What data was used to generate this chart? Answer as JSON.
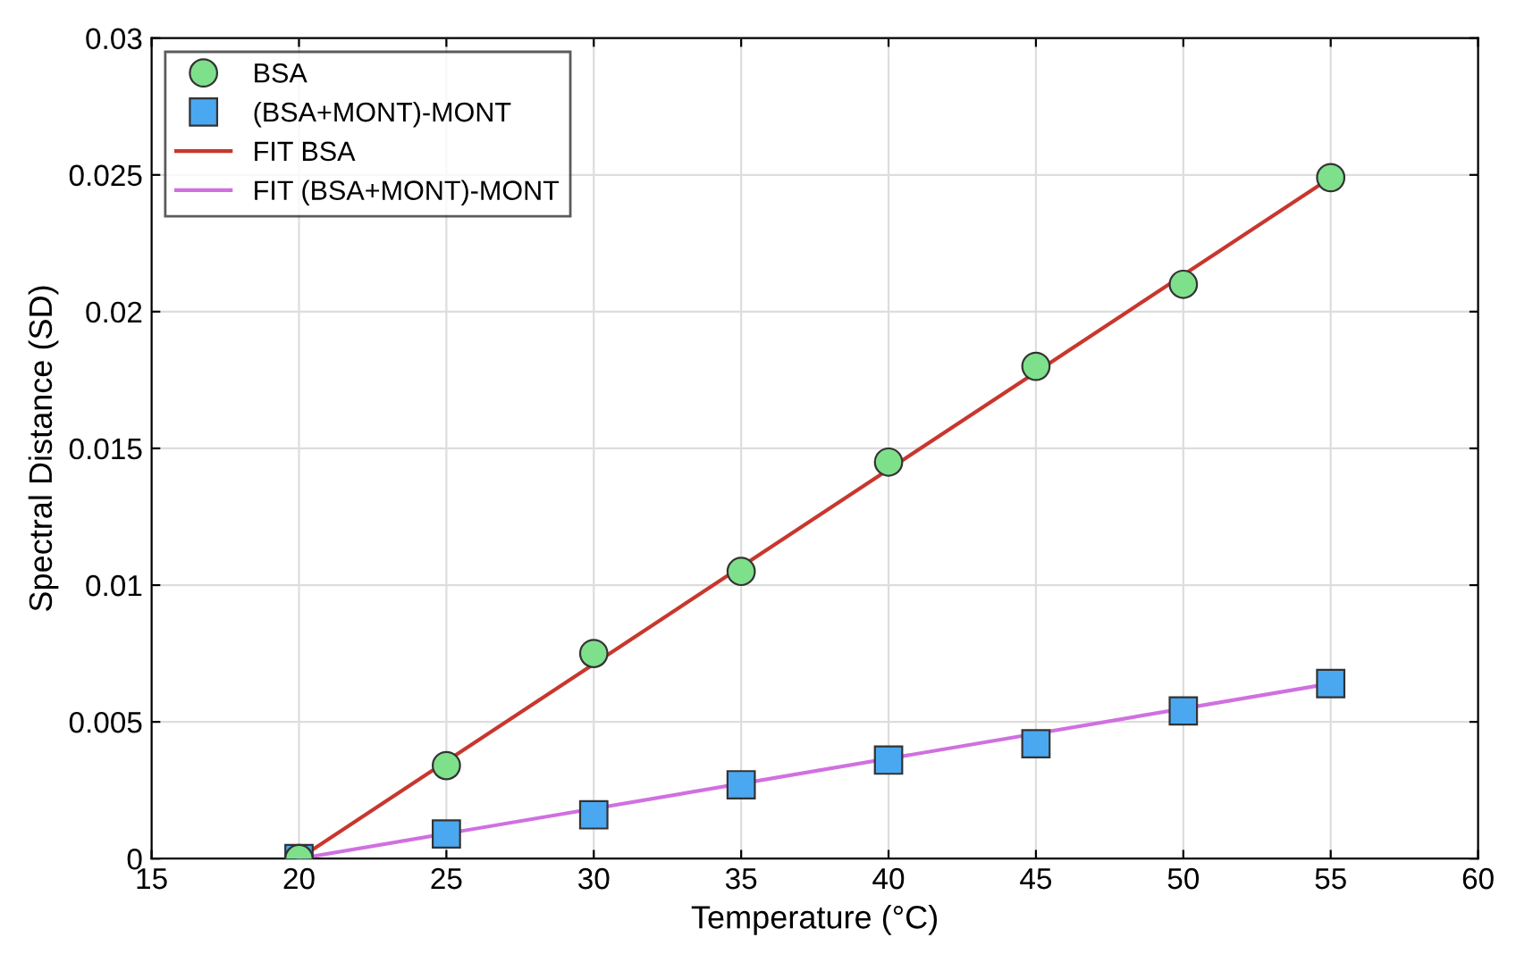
{
  "chart_data": {
    "type": "scatter",
    "xlabel": "Temperature (°C)",
    "ylabel": "Spectral Distance (SD)",
    "xlim": [
      15,
      60
    ],
    "xticks": [
      15,
      20,
      25,
      30,
      35,
      40,
      45,
      50,
      55,
      60
    ],
    "ylim": [
      0,
      0.03
    ],
    "yticks": [
      0,
      0.005,
      0.01,
      0.015,
      0.02,
      0.025,
      0.03
    ],
    "grid": true,
    "legend": "top left",
    "series": [
      {
        "name": "BSA",
        "marker": "circle",
        "color": "#7ee08a",
        "x": [
          20,
          25,
          30,
          35,
          40,
          45,
          50,
          55
        ],
        "values": [
          0,
          0.0034,
          0.0075,
          0.0105,
          0.0145,
          0.018,
          0.021,
          0.0249
        ]
      },
      {
        "name": "(BSA+MONT)-MONT",
        "marker": "square",
        "color": "#4aa8f0",
        "x": [
          20,
          25,
          30,
          35,
          40,
          45,
          50,
          55
        ],
        "values": [
          0,
          0.0009,
          0.0016,
          0.0027,
          0.0036,
          0.0042,
          0.0054,
          0.0064
        ]
      },
      {
        "name": "FIT BSA",
        "type": "line",
        "marker": "none",
        "line_style": "solid",
        "color": "#c8372d",
        "x": [
          20,
          55
        ],
        "values": [
          0,
          0.0249
        ]
      },
      {
        "name": "FIT (BSA+MONT)-MONT",
        "type": "line",
        "marker": "none",
        "line_style": "solid",
        "color": "#d070e0",
        "x": [
          20,
          55
        ],
        "values": [
          0,
          0.0064
        ]
      }
    ]
  }
}
